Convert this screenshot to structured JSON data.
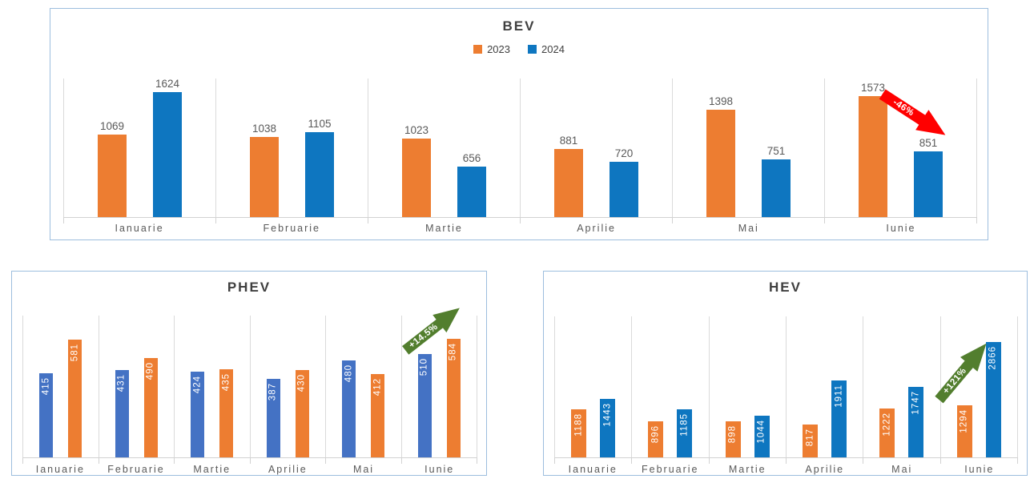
{
  "page": {
    "background": "#FFFFFF",
    "panel_border_color": "#9DBEDE"
  },
  "chart_data": [
    {
      "id": "bev",
      "type": "bar",
      "title": "BEV",
      "legend": {
        "position": "top",
        "items": [
          {
            "label": "2023",
            "color": "#ED7D31"
          },
          {
            "label": "2024",
            "color": "#0E76C0"
          }
        ]
      },
      "categories": [
        "Ianuarie",
        "Februarie",
        "Martie",
        "Aprilie",
        "Mai",
        "Iunie"
      ],
      "series": [
        {
          "name": "2023",
          "color": "#ED7D31",
          "values": [
            1069,
            1038,
            1023,
            881,
            1398,
            1573
          ]
        },
        {
          "name": "2024",
          "color": "#0E76C0",
          "values": [
            1624,
            1105,
            656,
            720,
            751,
            851
          ]
        }
      ],
      "axis_max": 1800,
      "grid": "category-dividers-only",
      "value_labels": "outside-end",
      "annotation": {
        "text": "-46%",
        "color": "#FF0000",
        "direction": "down-right",
        "target_category": "Iunie"
      }
    },
    {
      "id": "phev",
      "type": "bar",
      "title": "PHEV",
      "categories": [
        "Ianuarie",
        "Februarie",
        "Martie",
        "Aprilie",
        "Mai",
        "Iunie"
      ],
      "series": [
        {
          "name": "2023",
          "color": "#4472C4",
          "values": [
            415,
            431,
            424,
            387,
            480,
            510
          ]
        },
        {
          "name": "2024",
          "color": "#ED7D31",
          "values": [
            581,
            490,
            435,
            430,
            412,
            584
          ]
        }
      ],
      "axis_max": 700,
      "grid": "category-dividers-only",
      "value_labels": "inside-end-rotated",
      "annotation": {
        "text": "+14.5%",
        "color": "#527E2E",
        "direction": "up-right",
        "target_category": "Iunie"
      }
    },
    {
      "id": "hev",
      "type": "bar",
      "title": "HEV",
      "categories": [
        "Ianuarie",
        "Februarie",
        "Martie",
        "Aprilie",
        "Mai",
        "Iunie"
      ],
      "series": [
        {
          "name": "2023",
          "color": "#ED7D31",
          "values": [
            1188,
            896,
            898,
            817,
            1222,
            1294
          ]
        },
        {
          "name": "2024",
          "color": "#0E76C0",
          "values": [
            1443,
            1185,
            1044,
            1911,
            1747,
            2866
          ]
        }
      ],
      "axis_max": 3500,
      "grid": "category-dividers-only",
      "value_labels": "inside-end-rotated",
      "annotation": {
        "text": "+121%",
        "color": "#527E2E",
        "direction": "up-right",
        "target_category": "Iunie"
      }
    }
  ]
}
